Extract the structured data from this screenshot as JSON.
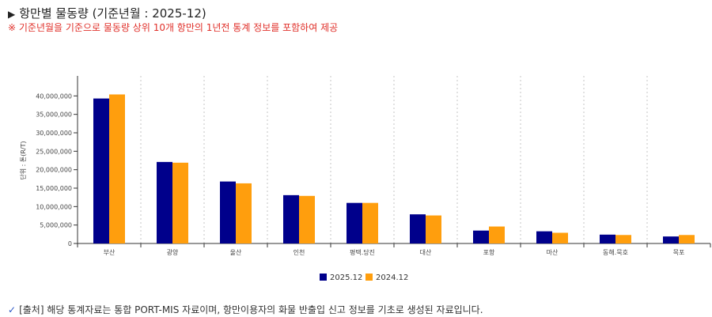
{
  "header": {
    "title_marker": "▶",
    "title": "항만별 물동량 (기준년월 : 2025-12)",
    "notice": "※ 기준년월을 기준으로 물동량 상위 10개 항만의 1년전 통계 정보를 포함하여 제공"
  },
  "colors": {
    "series_2025": "#00008b",
    "series_2024": "#ff9e0d",
    "notice_text": "#e0302a"
  },
  "chart_data": {
    "type": "bar",
    "ylabel": "단위 : 톤(R/T)",
    "ylim": [
      0,
      45000000
    ],
    "yticks": [
      0,
      5000000,
      10000000,
      15000000,
      20000000,
      25000000,
      30000000,
      35000000,
      40000000
    ],
    "ytick_labels": [
      "0",
      "5,000,000",
      "10,000,000",
      "15,000,000",
      "20,000,000",
      "25,000,000",
      "30,000,000",
      "35,000,000",
      "40,000,000"
    ],
    "categories": [
      "부산",
      "광양",
      "울산",
      "인천",
      "평택.당진",
      "대산",
      "포항",
      "마산",
      "동해.묵호",
      "목포"
    ],
    "series": [
      {
        "name": "2025.12",
        "values": [
          39300000,
          22100000,
          16800000,
          13100000,
          11000000,
          7900000,
          3500000,
          3300000,
          2400000,
          1900000
        ]
      },
      {
        "name": "2024.12",
        "values": [
          40400000,
          21900000,
          16300000,
          12900000,
          11000000,
          7600000,
          4600000,
          2900000,
          2300000,
          2300000
        ]
      }
    ],
    "grid": "vertical-dashed",
    "legend_position": "bottom-center"
  },
  "footer": {
    "check_mark": "✓",
    "source_text": "[출처] 해당 통계자료는 통합 PORT-MIS 자료이며, 항만이용자의 화물 반출입 신고 정보를 기초로 생성된 자료입니다."
  }
}
